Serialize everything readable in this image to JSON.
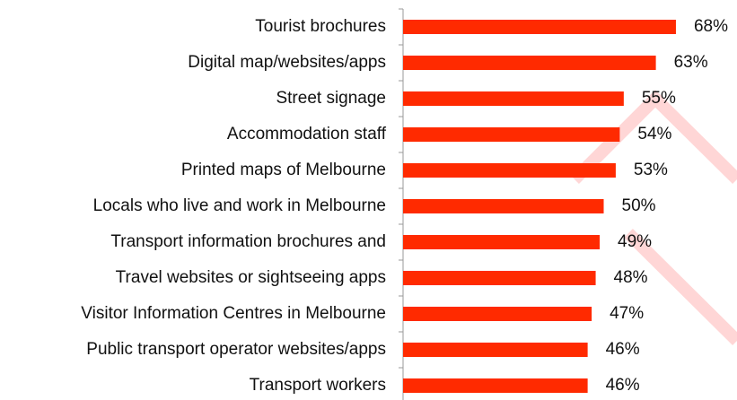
{
  "chart_data": {
    "type": "bar",
    "orientation": "horizontal",
    "categories": [
      "Tourist brochures",
      "Digital map/websites/apps",
      "Street signage",
      "Accommodation staff",
      "Printed maps of Melbourne",
      "Locals who live and work in Melbourne",
      "Transport information brochures and",
      "Travel websites or sightseeing apps",
      "Visitor Information Centres in Melbourne",
      "Public transport operator websites/apps",
      "Transport workers"
    ],
    "values": [
      68,
      63,
      55,
      54,
      53,
      50,
      49,
      48,
      47,
      46,
      46
    ],
    "value_labels": [
      "68%",
      "63%",
      "55%",
      "54%",
      "53%",
      "50%",
      "49%",
      "48%",
      "47%",
      "46%",
      "46%"
    ],
    "color": "#ff2a00"
  }
}
